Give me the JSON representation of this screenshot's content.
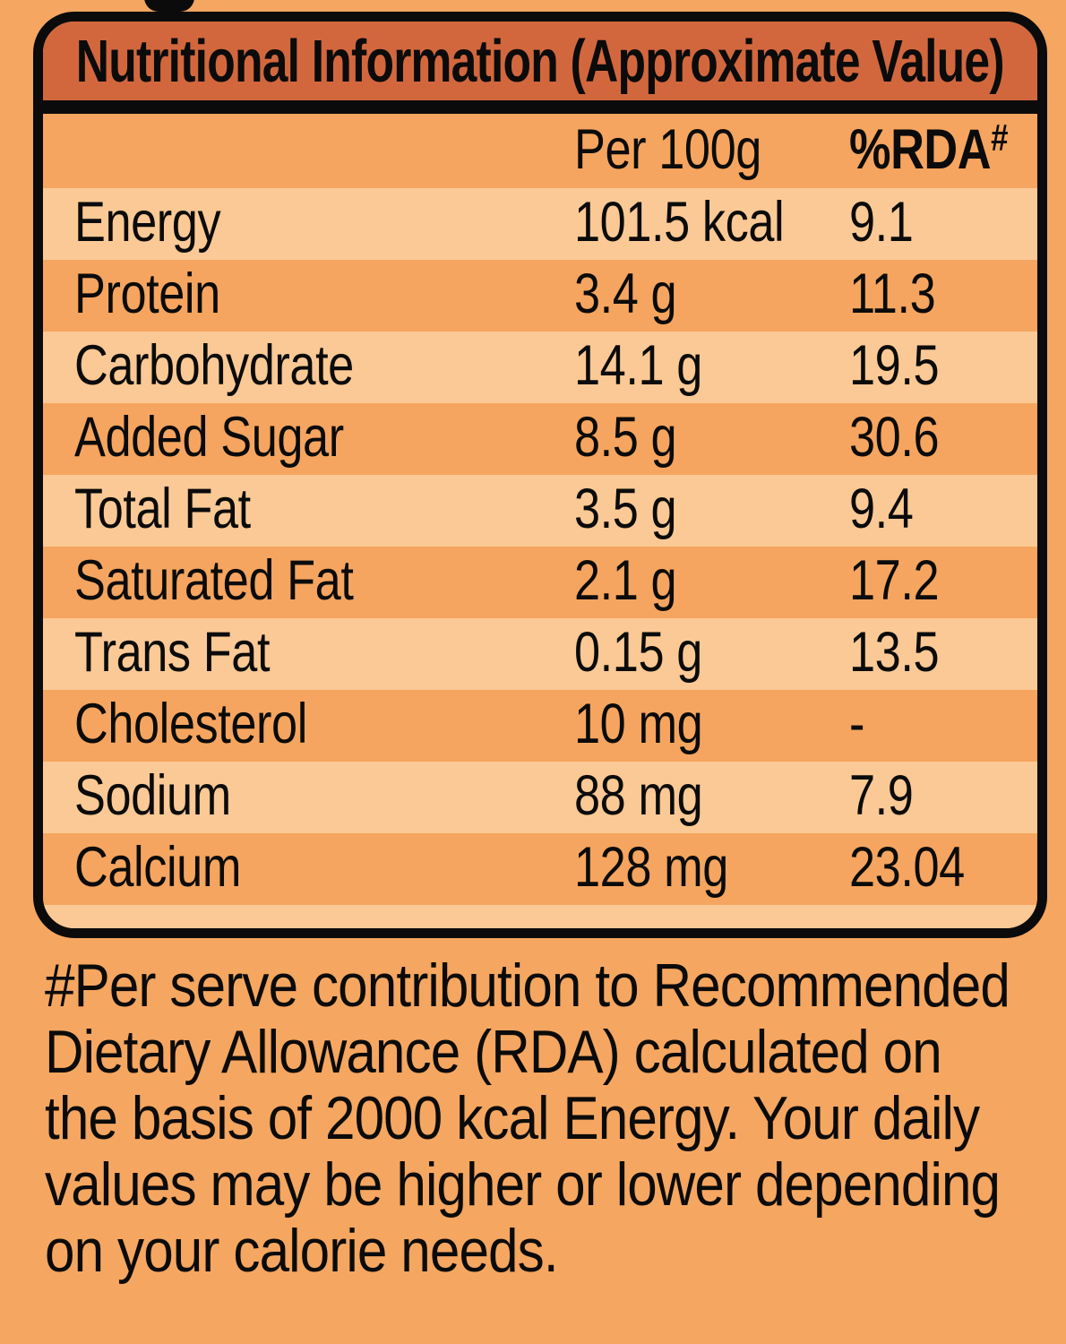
{
  "page": {
    "background_color": "#F5A660",
    "cropped_top_text_fragment": "g"
  },
  "table": {
    "title": "Nutritional Information (Approximate Value)",
    "title_band_color": "#D2673E",
    "border_color": "#0B0B0B",
    "row_light_color": "#FBC995",
    "row_dark_color": "#F5A55F",
    "columns": {
      "per_100g": "Per 100g",
      "rda": "%RDA",
      "rda_mark": "#"
    },
    "rows": [
      {
        "label": "Energy",
        "value": "101.5 kcal",
        "rda": "9.1"
      },
      {
        "label": "Protein",
        "value": "3.4 g",
        "rda": "11.3"
      },
      {
        "label": "Carbohydrate",
        "value": "14.1 g",
        "rda": "19.5"
      },
      {
        "label": "Added Sugar",
        "value": "8.5 g",
        "rda": "30.6"
      },
      {
        "label": "Total Fat",
        "value": "3.5 g",
        "rda": "9.4"
      },
      {
        "label": "Saturated Fat",
        "value": "2.1 g",
        "rda": "17.2"
      },
      {
        "label": "Trans Fat",
        "value": "0.15 g",
        "rda": "13.5"
      },
      {
        "label": "Cholesterol",
        "value": "10 mg",
        "rda": "-"
      },
      {
        "label": "Sodium",
        "value": "88 mg",
        "rda": "7.9"
      },
      {
        "label": "Calcium",
        "value": "128 mg",
        "rda": "23.04"
      }
    ]
  },
  "footnote": {
    "lines": [
      "#Per serve contribution to Recommended",
      "Dietary Allowance (RDA) calculated on",
      "the basis of 2000 kcal Energy. Your daily",
      "values may be higher or lower depending",
      "on your calorie needs."
    ]
  }
}
